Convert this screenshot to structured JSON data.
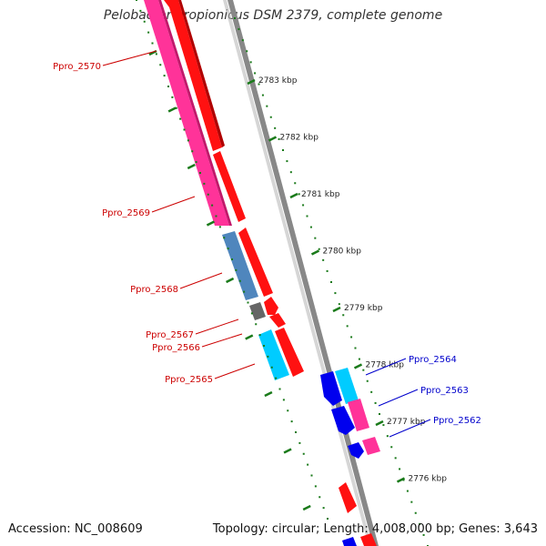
{
  "title": "Pelobacter propionicus DSM 2379, complete genome",
  "footer": {
    "accession": "Accession: NC_008609",
    "summary": "Topology: circular; Length: 4,008,000 bp; Genes: 3,643"
  },
  "colors": {
    "background": "#ffffff",
    "backbone": "#888888",
    "tick_color": "#1a7a1a",
    "label_left": "#cc0000",
    "label_right": "#0000cc"
  },
  "scale_labels": [
    "2783 kbp",
    "2782 kbp",
    "2781 kbp",
    "2780 kbp",
    "2779 kbp",
    "2778 kbp",
    "2777 kbp",
    "2776 kbp"
  ],
  "genes_left": [
    {
      "label": "Ppro_2570",
      "color": "#ff3399"
    },
    {
      "label": "Ppro_2569",
      "color": "#ff3399"
    },
    {
      "label": "Ppro_2568",
      "color": "#4f86bd"
    },
    {
      "label": "Ppro_2567",
      "color": "#666666"
    },
    {
      "label": "Ppro_2566",
      "color": "#ff1111"
    },
    {
      "label": "Ppro_2565",
      "color": "#00ccff"
    }
  ],
  "genes_right": [
    {
      "label": "Ppro_2564",
      "color": "#00ccff"
    },
    {
      "label": "Ppro_2563",
      "color": "#ff3399"
    },
    {
      "label": "Ppro_2562",
      "color": "#ff3399"
    }
  ]
}
